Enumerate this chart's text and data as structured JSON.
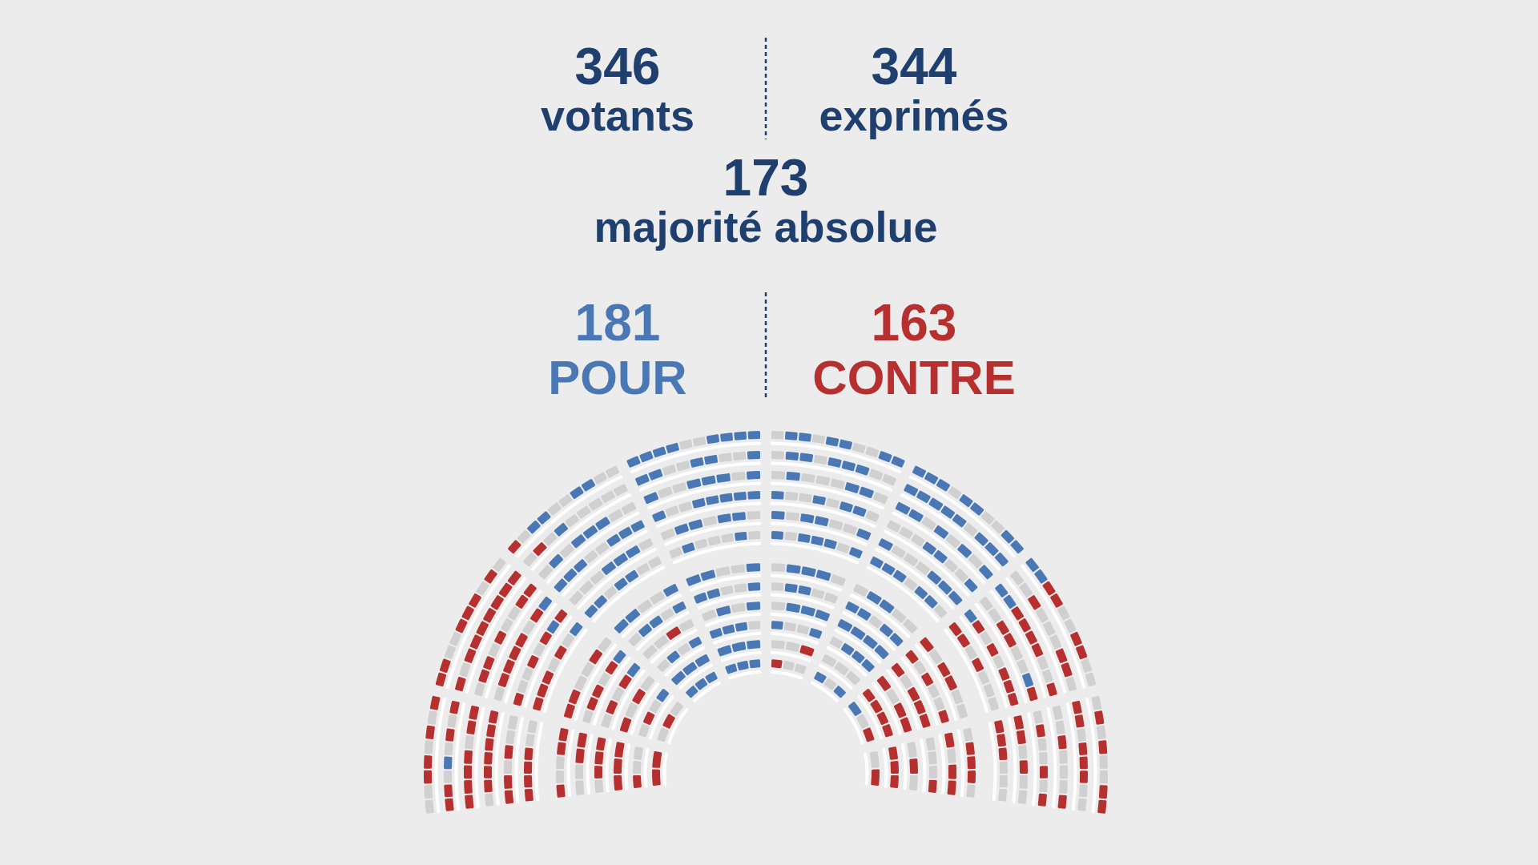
{
  "chart_data": {
    "type": "other",
    "annotations": [
      "346 votants",
      "344 exprimés",
      "173 majorité absolue"
    ],
    "categories": [
      "POUR",
      "CONTRE"
    ],
    "values": [
      181,
      163
    ],
    "colors": [
      "#4a78b5",
      "#b5302f"
    ],
    "value_labels": [
      "181",
      "163"
    ]
  }
}
